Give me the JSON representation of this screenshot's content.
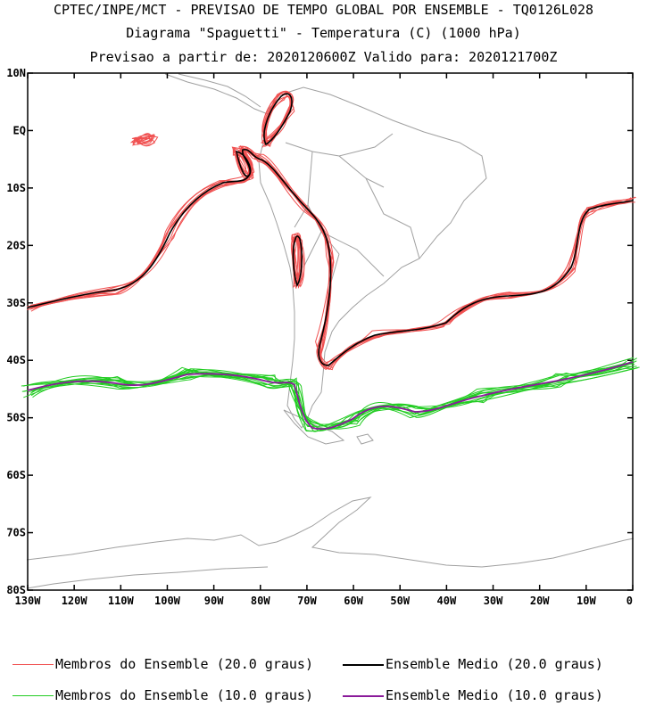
{
  "header": {
    "line1": "CPTEC/INPE/MCT - PREVISAO DE TEMPO GLOBAL POR ENSEMBLE - TQ0126L028",
    "line2": "Diagrama \"Spaguetti\" - Temperatura (C) (1000 hPa)",
    "line3": "Previsao a partir de: 2020120600Z  Valido para: 2020121700Z"
  },
  "map": {
    "lat_labels": [
      "10N",
      "EQ",
      "10S",
      "20S",
      "30S",
      "40S",
      "50S",
      "60S",
      "70S",
      "80S"
    ],
    "lon_labels": [
      "130W",
      "120W",
      "110W",
      "100W",
      "90W",
      "80W",
      "70W",
      "60W",
      "50W",
      "40W",
      "30W",
      "20W",
      "10W",
      "0"
    ],
    "extent": {
      "lon": [
        -130,
        0
      ],
      "lat": [
        -80,
        10
      ]
    }
  },
  "legend": {
    "red_members": "Membros do Ensemble (20.0 graus)",
    "black_mean": "Ensemble Medio (20.0 graus)",
    "green_members": "Membros do Ensemble (10.0 graus)",
    "purple_mean": "Ensemble Medio (10.0 graus)"
  },
  "colors": {
    "red_members": "#f05050",
    "black_mean": "#000000",
    "green_members": "#22cc22",
    "purple_mean": "#8a1a9a",
    "coast": "#a0a0a0"
  }
}
